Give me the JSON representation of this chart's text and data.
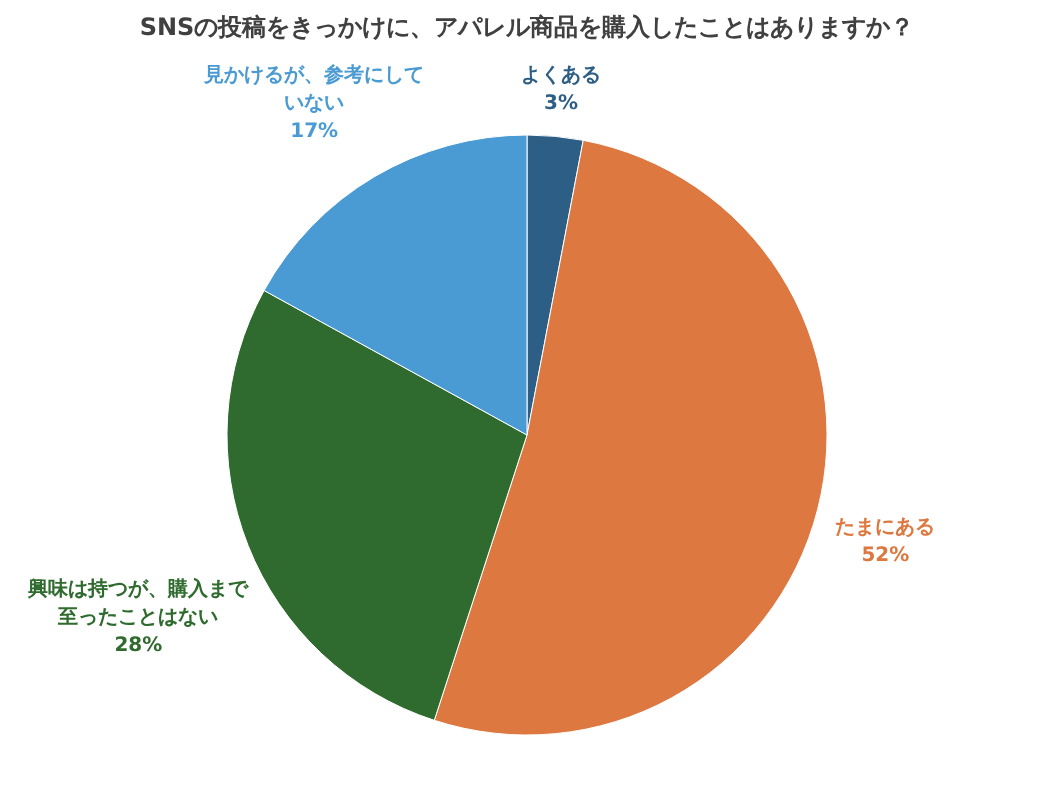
{
  "chart_data": {
    "type": "pie",
    "title": "SNSの投稿をきっかけに、アパレル商品を購入したことはありますか？",
    "categories": [
      "よくある",
      "たまにある",
      "興味は持つが、購入まで至ったことはない",
      "見かけるが、参考にしていない"
    ],
    "values": [
      3,
      52,
      28,
      17
    ],
    "colors": [
      "#2d5f86",
      "#dc7840",
      "#2f6b2e",
      "#4a9bd3"
    ],
    "value_labels": [
      "3%",
      "52%",
      "28%",
      "17%"
    ]
  }
}
